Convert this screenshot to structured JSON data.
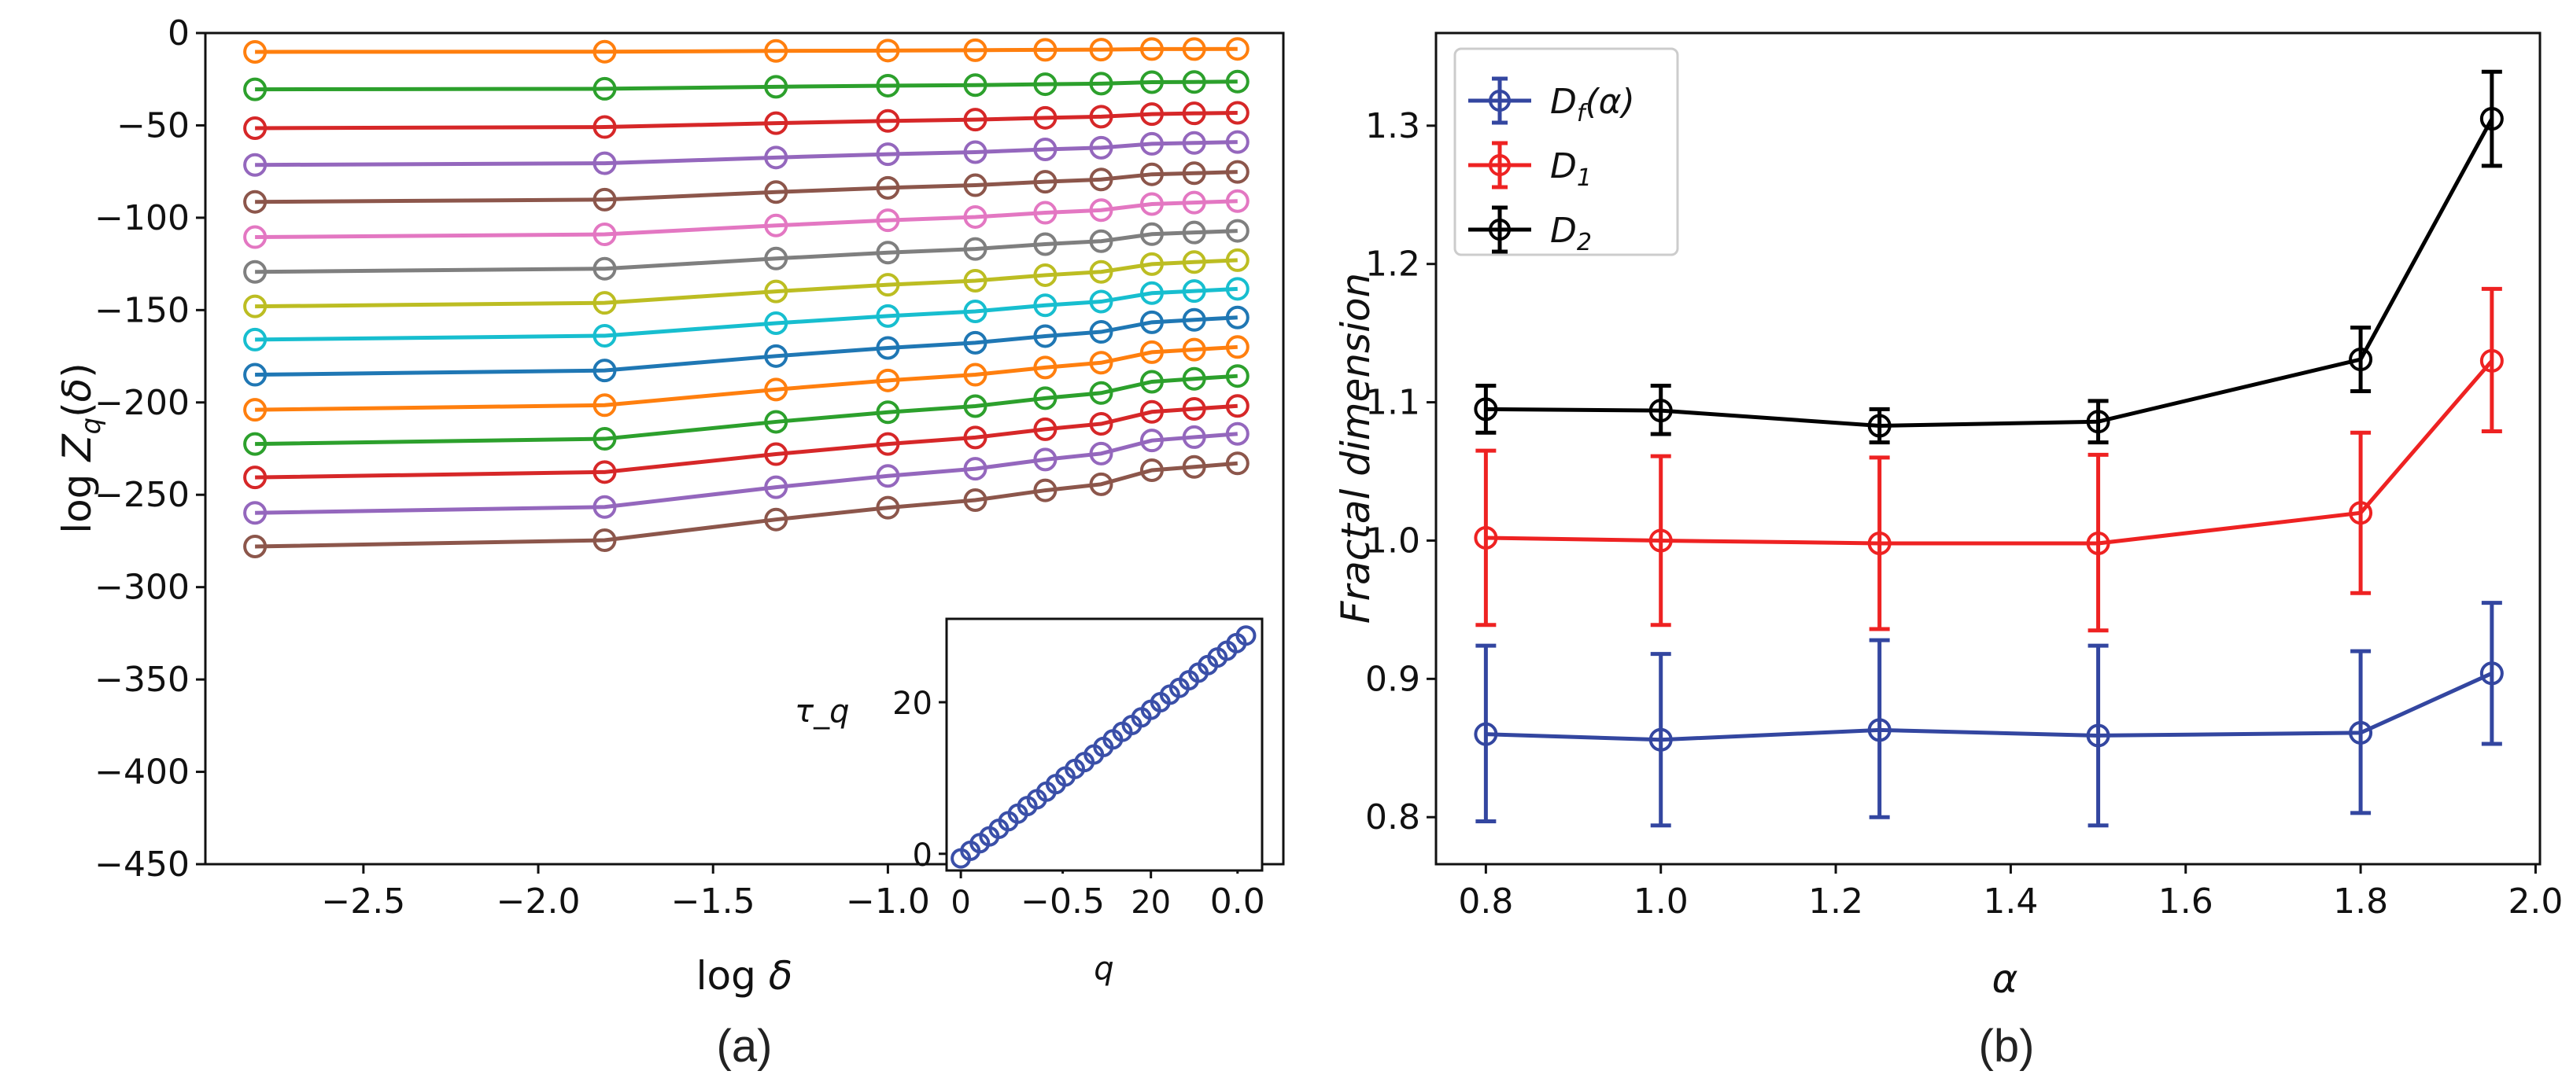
{
  "chart_data": [
    {
      "type": "line",
      "panel_label": "(a)",
      "xlabel": "log δ",
      "ylabel": "log Z_q(δ)",
      "xlim": [
        -2.952,
        0.131
      ],
      "ylim": [
        -450,
        0
      ],
      "xticks": [
        -2.5,
        -2.0,
        -1.5,
        -1.0,
        -0.5,
        0.0
      ],
      "xtick_labels": [
        "−2.5",
        "−2.0",
        "−1.5",
        "−1.0",
        "−0.5",
        "0.0"
      ],
      "yticks": [
        0,
        -50,
        -100,
        -150,
        -200,
        -250,
        -300,
        -350,
        -400,
        -450
      ],
      "ytick_labels": [
        "0",
        "−50",
        "−100",
        "−150",
        "−200",
        "−250",
        "−300",
        "−350",
        "−400",
        "−450"
      ],
      "grid": false,
      "marker": "open-circle",
      "x": [
        -2.81,
        -1.81,
        -1.32,
        -1.0,
        -0.75,
        -0.55,
        -0.39,
        -0.245,
        -0.124,
        0.0
      ],
      "series": [
        {
          "color": "#ff7f0e",
          "values": [
            -10.2,
            -10.1,
            -9.7,
            -9.5,
            -9.3,
            -9.1,
            -9.0,
            -8.7,
            -8.7,
            -8.6
          ]
        },
        {
          "color": "#2ca02c",
          "values": [
            -30.5,
            -30.2,
            -29.1,
            -28.5,
            -28.2,
            -27.7,
            -27.4,
            -26.6,
            -26.5,
            -26.3
          ]
        },
        {
          "color": "#d62728",
          "values": [
            -51.5,
            -50.9,
            -48.8,
            -47.6,
            -46.9,
            -45.9,
            -45.3,
            -43.9,
            -43.5,
            -43.2
          ]
        },
        {
          "color": "#9467bd",
          "values": [
            -71.4,
            -70.5,
            -67.4,
            -65.6,
            -64.5,
            -63.0,
            -62.1,
            -60.0,
            -59.5,
            -59.0
          ]
        },
        {
          "color": "#8c564b",
          "values": [
            -91.4,
            -90.2,
            -86.1,
            -83.8,
            -82.4,
            -80.5,
            -79.3,
            -76.5,
            -75.9,
            -75.2
          ]
        },
        {
          "color": "#e377c2",
          "values": [
            -110.5,
            -109.0,
            -104.2,
            -101.4,
            -99.6,
            -97.3,
            -95.9,
            -92.6,
            -91.8,
            -91.0
          ]
        },
        {
          "color": "#7f7f7f",
          "values": [
            -129.3,
            -127.6,
            -122.1,
            -118.9,
            -116.9,
            -114.3,
            -112.7,
            -108.9,
            -108.0,
            -107.1
          ]
        },
        {
          "color": "#bcbd22",
          "values": [
            -148,
            -146.1,
            -139.9,
            -136.3,
            -134.1,
            -131.1,
            -129.3,
            -125.1,
            -124.0,
            -123
          ]
        },
        {
          "color": "#17becf",
          "values": [
            -166,
            -163.9,
            -157.1,
            -153.2,
            -150.7,
            -147.4,
            -145.4,
            -140.8,
            -139.7,
            -138.5
          ]
        },
        {
          "color": "#1f77b4",
          "values": [
            -185,
            -182.7,
            -174.9,
            -170.5,
            -167.7,
            -164.1,
            -161.8,
            -156.6,
            -155.3,
            -154
          ]
        },
        {
          "color": "#ff7f0e",
          "values": [
            -204,
            -201.5,
            -193.0,
            -188.1,
            -185.0,
            -181.1,
            -178.5,
            -172.8,
            -171.4,
            -170
          ]
        },
        {
          "color": "#2ca02c",
          "values": [
            -222.5,
            -219.7,
            -210.5,
            -205.3,
            -202.0,
            -197.7,
            -194.9,
            -188.8,
            -187.2,
            -185.7
          ]
        },
        {
          "color": "#d62728",
          "values": [
            -240.6,
            -237.7,
            -228.0,
            -222.5,
            -219.0,
            -214.5,
            -211.6,
            -205.1,
            -203.5,
            -201.9
          ]
        },
        {
          "color": "#9467bd",
          "values": [
            -259.8,
            -256.6,
            -245.9,
            -239.8,
            -235.9,
            -230.9,
            -227.7,
            -220.6,
            -218.8,
            -217
          ]
        },
        {
          "color": "#8c564b",
          "values": [
            -278,
            -274.6,
            -263.4,
            -257.0,
            -252.9,
            -247.6,
            -244.3,
            -236.7,
            -234.9,
            -233
          ]
        }
      ],
      "inset": {
        "type": "scatter",
        "xlabel": "q",
        "ylabel": "τ_q",
        "xlim": [
          -1.5,
          31.7
        ],
        "ylim": [
          -2.2,
          31
        ],
        "xticks": [
          0,
          20
        ],
        "yticks": [
          0,
          20
        ],
        "color": "#3a4fa8",
        "x": [
          0,
          1,
          2,
          3,
          4,
          5,
          6,
          7,
          8,
          9,
          10,
          11,
          12,
          13,
          14,
          15,
          16,
          17,
          18,
          19,
          20,
          21,
          22,
          23,
          24,
          25,
          26,
          27,
          28,
          29,
          30
        ],
        "y": [
          -0.6,
          0.4,
          1.4,
          2.3,
          3.3,
          4.3,
          5.3,
          6.3,
          7.2,
          8.2,
          9.2,
          10.2,
          11.2,
          12.1,
          13.1,
          14.1,
          15.1,
          16.1,
          17.0,
          18.0,
          19.0,
          20.0,
          21.0,
          21.9,
          22.9,
          23.9,
          24.9,
          25.9,
          26.8,
          27.8,
          28.8
        ]
      }
    },
    {
      "type": "line",
      "panel_label": "(b)",
      "xlabel": "α",
      "ylabel": "Fractal dimension",
      "xlim": [
        0.743,
        2.005
      ],
      "ylim": [
        0.766,
        1.367
      ],
      "xticks": [
        0.8,
        1.0,
        1.2,
        1.4,
        1.6,
        1.8,
        2.0
      ],
      "xtick_labels": [
        "0.8",
        "1.0",
        "1.2",
        "1.4",
        "1.6",
        "1.8",
        "2.0"
      ],
      "yticks": [
        0.8,
        0.9,
        1.0,
        1.1,
        1.2,
        1.3
      ],
      "ytick_labels": [
        "0.8",
        "0.9",
        "1.0",
        "1.1",
        "1.2",
        "1.3"
      ],
      "grid": false,
      "legend_position": "top-left",
      "x": [
        0.8,
        1.0,
        1.25,
        1.5,
        1.8,
        1.95
      ],
      "series": [
        {
          "name": "D_f(α)",
          "legend_main": "D",
          "legend_sub": "f",
          "legend_suffix": "(α)",
          "color": "#3346a0",
          "values": [
            0.86,
            0.856,
            0.863,
            0.859,
            0.861,
            0.904
          ],
          "err_low": [
            0.797,
            0.794,
            0.8,
            0.794,
            0.803,
            0.853
          ],
          "err_high": [
            0.924,
            0.918,
            0.928,
            0.924,
            0.92,
            0.955
          ]
        },
        {
          "name": "D_1",
          "legend_main": "D",
          "legend_sub": "1",
          "legend_suffix": "",
          "color": "#ee2222",
          "values": [
            1.002,
            1.0,
            0.998,
            0.998,
            1.02,
            1.13
          ],
          "err_low": [
            0.939,
            0.939,
            0.936,
            0.935,
            0.962,
            1.079
          ],
          "err_high": [
            1.065,
            1.061,
            1.06,
            1.062,
            1.078,
            1.182
          ]
        },
        {
          "name": "D_2",
          "legend_main": "D",
          "legend_sub": "2",
          "legend_suffix": "",
          "color": "#000000",
          "values": [
            1.095,
            1.094,
            1.083,
            1.086,
            1.131,
            1.305
          ],
          "err_low": [
            1.078,
            1.077,
            1.071,
            1.071,
            1.108,
            1.271
          ],
          "err_high": [
            1.112,
            1.112,
            1.095,
            1.101,
            1.154,
            1.339
          ]
        }
      ]
    }
  ]
}
